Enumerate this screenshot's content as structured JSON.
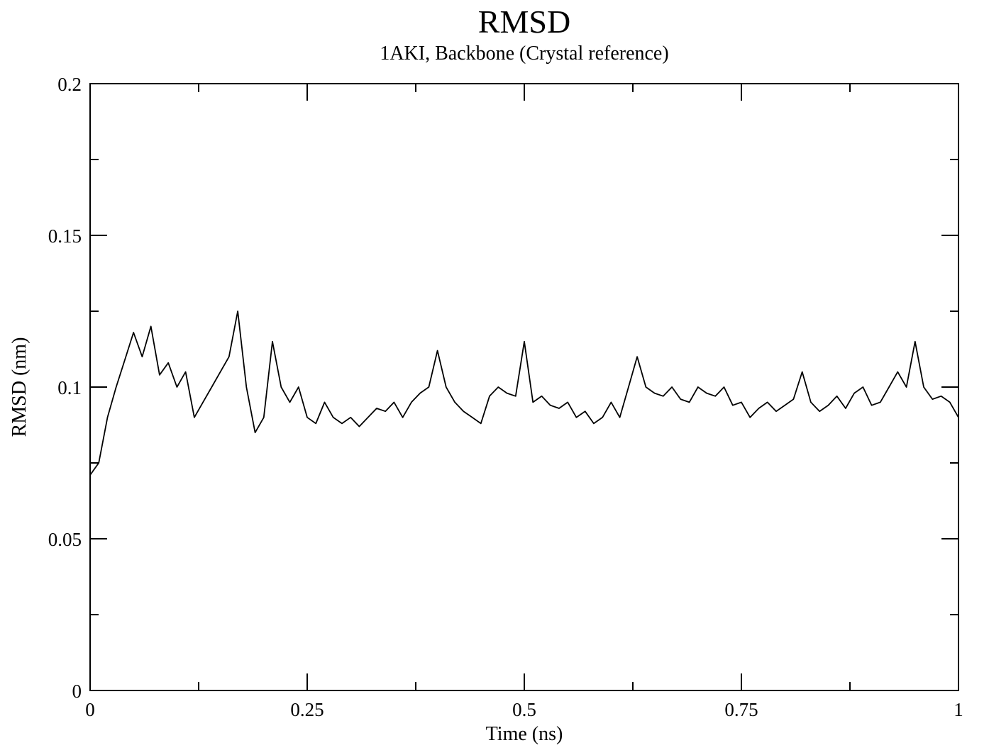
{
  "chart_data": {
    "type": "line",
    "title": "RMSD",
    "subtitle": "1AKI, Backbone (Crystal reference)",
    "xlabel": "Time (ns)",
    "ylabel": "RMSD (nm)",
    "xlim": [
      0,
      1
    ],
    "ylim": [
      0,
      0.2
    ],
    "x_ticks": [
      0,
      0.25,
      0.5,
      0.75,
      1
    ],
    "x_tick_labels": [
      "0",
      "0.25",
      "0.5",
      "0.75",
      "1"
    ],
    "x_minor_ticks": [
      0.125,
      0.375,
      0.625,
      0.875
    ],
    "y_ticks": [
      0,
      0.05,
      0.1,
      0.15,
      0.2
    ],
    "y_tick_labels": [
      "0",
      "0.05",
      "0.1",
      "0.15",
      "0.2"
    ],
    "y_minor_ticks": [
      0.025,
      0.075,
      0.125,
      0.175
    ],
    "grid": false,
    "line_color": "#000000",
    "series": [
      {
        "x": [
          0,
          0.01,
          0.02,
          0.03,
          0.04,
          0.05,
          0.06,
          0.07,
          0.08,
          0.09,
          0.1,
          0.11,
          0.12,
          0.13,
          0.14,
          0.15,
          0.16,
          0.17,
          0.18,
          0.19,
          0.2,
          0.21,
          0.22,
          0.23,
          0.24,
          0.25,
          0.26,
          0.27,
          0.28,
          0.29,
          0.3,
          0.31,
          0.32,
          0.33,
          0.34,
          0.35,
          0.36,
          0.37,
          0.38,
          0.39,
          0.4,
          0.41,
          0.42,
          0.43,
          0.44,
          0.45,
          0.46,
          0.47,
          0.48,
          0.49,
          0.5,
          0.51,
          0.52,
          0.53,
          0.54,
          0.55,
          0.56,
          0.57,
          0.58,
          0.59,
          0.6,
          0.61,
          0.62,
          0.63,
          0.64,
          0.65,
          0.66,
          0.67,
          0.68,
          0.69,
          0.7,
          0.71,
          0.72,
          0.73,
          0.74,
          0.75,
          0.76,
          0.77,
          0.78,
          0.79,
          0.8,
          0.81,
          0.82,
          0.83,
          0.84,
          0.85,
          0.86,
          0.87,
          0.88,
          0.89,
          0.9,
          0.91,
          0.92,
          0.93,
          0.94,
          0.95,
          0.96,
          0.97,
          0.98,
          0.99,
          1.0
        ],
        "y": [
          0.071,
          0.075,
          0.09,
          0.1,
          0.109,
          0.118,
          0.11,
          0.12,
          0.104,
          0.108,
          0.1,
          0.105,
          0.09,
          0.095,
          0.1,
          0.105,
          0.11,
          0.125,
          0.1,
          0.085,
          0.09,
          0.115,
          0.1,
          0.095,
          0.1,
          0.09,
          0.088,
          0.095,
          0.09,
          0.088,
          0.09,
          0.087,
          0.09,
          0.093,
          0.092,
          0.095,
          0.09,
          0.095,
          0.098,
          0.1,
          0.112,
          0.1,
          0.095,
          0.092,
          0.09,
          0.088,
          0.097,
          0.1,
          0.098,
          0.097,
          0.115,
          0.095,
          0.097,
          0.094,
          0.093,
          0.095,
          0.09,
          0.092,
          0.088,
          0.09,
          0.095,
          0.09,
          0.1,
          0.11,
          0.1,
          0.098,
          0.097,
          0.1,
          0.096,
          0.095,
          0.1,
          0.098,
          0.097,
          0.1,
          0.094,
          0.095,
          0.09,
          0.093,
          0.095,
          0.092,
          0.094,
          0.096,
          0.105,
          0.095,
          0.092,
          0.094,
          0.097,
          0.093,
          0.098,
          0.1,
          0.094,
          0.095,
          0.1,
          0.105,
          0.1,
          0.115,
          0.1,
          0.096,
          0.097,
          0.095,
          0.09
        ]
      }
    ]
  }
}
